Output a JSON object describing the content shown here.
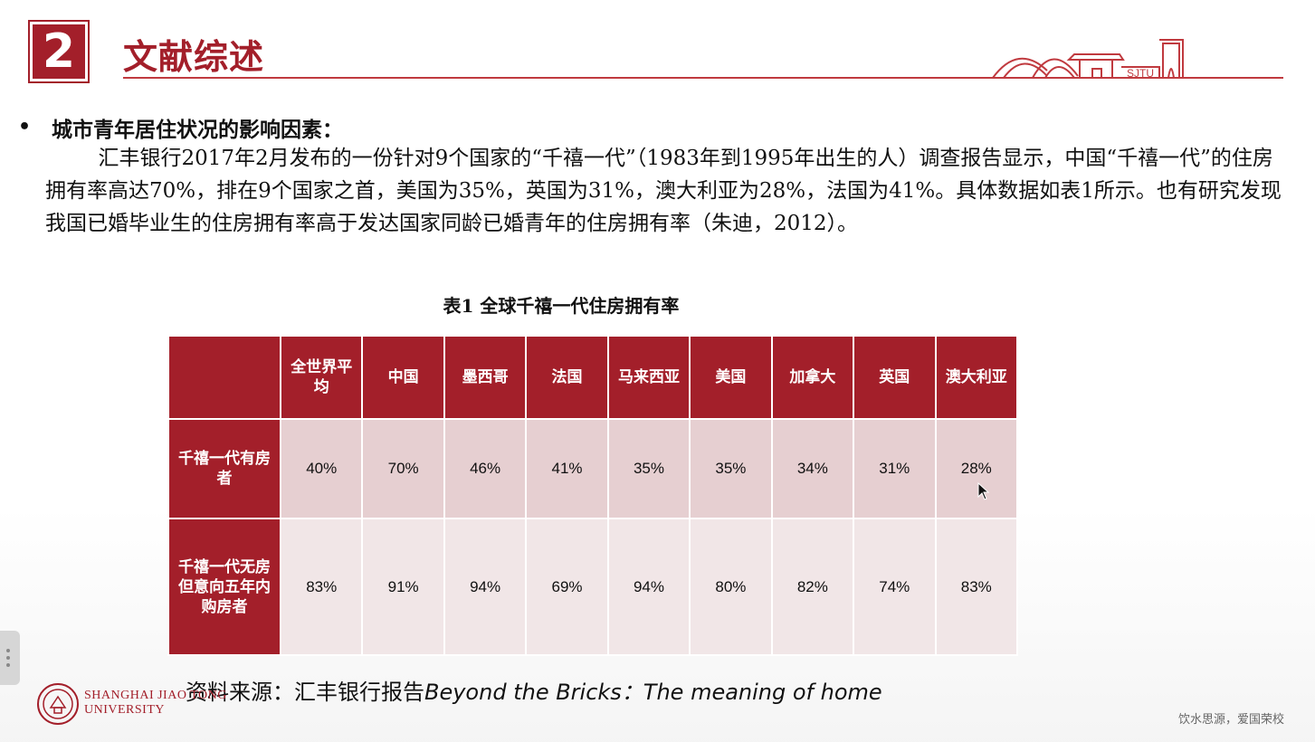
{
  "section": {
    "number": "2",
    "title": "文献综述"
  },
  "logo_top": {
    "text": "SJTU"
  },
  "bullet": {
    "marker": "•",
    "heading": "城市青年居住状况的影响因素："
  },
  "paragraph": "        汇丰银行2017年2月发布的一份针对9个国家的“千禧一代”（1983年到1995年出生的人）调查报告显示，中国“千禧一代”的住房拥有率高达70%，排在9个国家之首，美国为35%，英国为31%，澳大利亚为28%，法国为41%。具体数据如表1所示。也有研究发现我国已婚毕业生的住房拥有率高于发达国家同龄已婚青年的住房拥有率（朱迪，2012）。",
  "table": {
    "caption": "表1 全球千禧一代住房拥有率",
    "columns": [
      "",
      "全世界平均",
      "中国",
      "墨西哥",
      "法国",
      "马来西亚",
      "美国",
      "加拿大",
      "英国",
      "澳大利亚"
    ],
    "rows": [
      {
        "label": "千禧一代有房者",
        "values": [
          "40%",
          "70%",
          "46%",
          "41%",
          "35%",
          "35%",
          "34%",
          "31%",
          "28%"
        ]
      },
      {
        "label": "千禧一代无房但意向五年内购房者",
        "values": [
          "83%",
          "91%",
          "94%",
          "69%",
          "94%",
          "80%",
          "82%",
          "74%",
          "83%"
        ]
      }
    ]
  },
  "source": {
    "prefix": "资料来源：汇丰银行报告",
    "title": "Beyond the Bricks：The meaning of home"
  },
  "footer": {
    "university_line1": "SHANGHAI JIAO TONG",
    "university_line2": "UNIVERSITY",
    "motto": "饮水思源，爱国荣校"
  },
  "colors": {
    "accent": "#a31f2a",
    "row1": "#e6cfd1",
    "row2": "#f1e6e7"
  }
}
